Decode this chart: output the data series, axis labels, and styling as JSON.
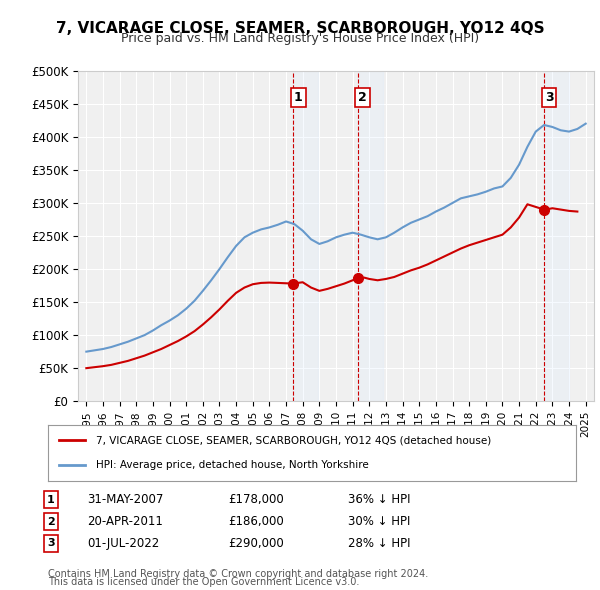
{
  "title": "7, VICARAGE CLOSE, SEAMER, SCARBOROUGH, YO12 4QS",
  "subtitle": "Price paid vs. HM Land Registry's House Price Index (HPI)",
  "xlabel": "",
  "ylabel": "",
  "ylim": [
    0,
    500000
  ],
  "yticks": [
    0,
    50000,
    100000,
    150000,
    200000,
    250000,
    300000,
    350000,
    400000,
    450000,
    500000
  ],
  "ytick_labels": [
    "£0",
    "£50K",
    "£100K",
    "£150K",
    "£200K",
    "£250K",
    "£300K",
    "£350K",
    "£400K",
    "£450K",
    "£500K"
  ],
  "background_color": "#ffffff",
  "plot_bg_color": "#f0f0f0",
  "grid_color": "#ffffff",
  "hpi_color": "#6699cc",
  "price_color": "#cc0000",
  "sale_marker_color": "#cc0000",
  "shade_color": "#ddeeff",
  "dashed_color": "#cc0000",
  "legend_label_price": "7, VICARAGE CLOSE, SEAMER, SCARBOROUGH, YO12 4QS (detached house)",
  "legend_label_hpi": "HPI: Average price, detached house, North Yorkshire",
  "sales": [
    {
      "label": "1",
      "date": "31-MAY-2007",
      "price": 178000,
      "hpi_pct": "36% ↓ HPI",
      "x_year": 2007.42
    },
    {
      "label": "2",
      "date": "20-APR-2011",
      "price": 186000,
      "hpi_pct": "30% ↓ HPI",
      "x_year": 2011.3
    },
    {
      "label": "3",
      "date": "01-JUL-2022",
      "price": 290000,
      "hpi_pct": "28% ↓ HPI",
      "x_year": 2022.5
    }
  ],
  "footer_line1": "Contains HM Land Registry data © Crown copyright and database right 2024.",
  "footer_line2": "This data is licensed under the Open Government Licence v3.0.",
  "xlim_start": 1994.5,
  "xlim_end": 2025.5
}
